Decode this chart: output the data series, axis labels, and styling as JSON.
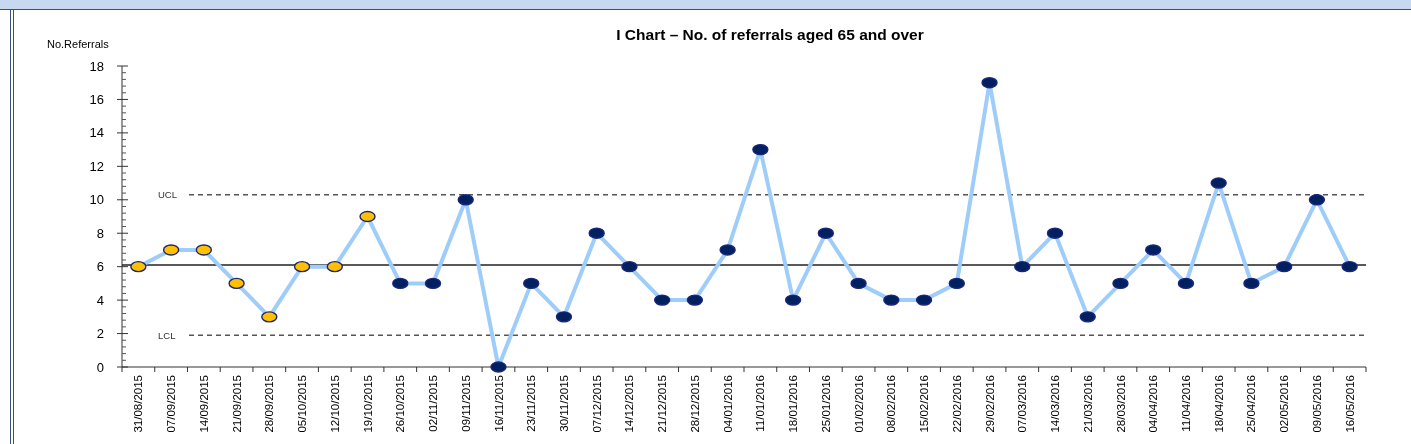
{
  "chart_data": {
    "type": "line",
    "title": "I Chart – No. of referrals aged 65 and over",
    "ylabel": "No.Referrals",
    "categories": [
      "31/08/2015",
      "07/09/2015",
      "14/09/2015",
      "21/09/2015",
      "28/09/2015",
      "05/10/2015",
      "12/10/2015",
      "19/10/2015",
      "26/10/2015",
      "02/11/2015",
      "09/11/2015",
      "16/11/2015",
      "23/11/2015",
      "30/11/2015",
      "07/12/2015",
      "14/12/2015",
      "21/12/2015",
      "28/12/2015",
      "04/01/2016",
      "11/01/2016",
      "18/01/2016",
      "25/01/2016",
      "01/02/2016",
      "08/02/2016",
      "15/02/2016",
      "22/02/2016",
      "29/02/2016",
      "07/03/2016",
      "14/03/2016",
      "21/03/2016",
      "28/03/2016",
      "04/04/2016",
      "11/04/2016",
      "18/04/2016",
      "25/04/2016",
      "02/05/2016",
      "09/05/2016",
      "16/05/2016"
    ],
    "series": [
      {
        "color": "#9fcdfa",
        "values": [
          6,
          7,
          7,
          5,
          3,
          6,
          6,
          9,
          5,
          5,
          10,
          0,
          5,
          3,
          8,
          6,
          4,
          4,
          7,
          13,
          4,
          8,
          5,
          4,
          4,
          5,
          17,
          6,
          8,
          3,
          5,
          7,
          5,
          11,
          5,
          6,
          10,
          6
        ],
        "colors": [
          "#ffc000",
          "#ffc000",
          "#ffc000",
          "#ffc000",
          "#ffc000",
          "#ffc000",
          "#ffc000",
          "#ffc000",
          "#002060",
          "#002060",
          "#002060",
          "#002060",
          "#002060",
          "#002060",
          "#002060",
          "#002060",
          "#002060",
          "#002060",
          "#002060",
          "#002060",
          "#002060",
          "#002060",
          "#002060",
          "#002060",
          "#002060",
          "#002060",
          "#002060",
          "#002060",
          "#002060",
          "#002060",
          "#002060",
          "#002060",
          "#002060",
          "#002060",
          "#002060",
          "#002060",
          "#002060",
          "#002060"
        ]
      }
    ],
    "ylim": [
      0,
      18
    ],
    "yticks": [
      0,
      {
        "value": 0.4,
        "label": null
      },
      {
        "value": 0.8,
        "label": null
      },
      {
        "value": 1.2,
        "label": null
      },
      {
        "value": 1.6,
        "label": null
      },
      2,
      {
        "value": 2.4,
        "label": null
      },
      {
        "value": 2.8,
        "label": null
      },
      {
        "value": 3.2,
        "label": null
      },
      {
        "value": 3.6,
        "label": null
      },
      4,
      {
        "value": 4.4,
        "label": null
      },
      {
        "value": 4.8,
        "label": null
      },
      {
        "value": 5.2,
        "label": null
      },
      {
        "value": 5.6,
        "label": null
      },
      6,
      {
        "value": 6.4,
        "label": null
      },
      {
        "value": 6.8,
        "label": null
      },
      {
        "value": 7.2,
        "label": null
      },
      {
        "value": 7.6,
        "label": null
      },
      8,
      {
        "value": 8.4,
        "label": null
      },
      {
        "value": 8.8,
        "label": null
      },
      {
        "value": 9.2,
        "label": null
      },
      {
        "value": 9.6,
        "label": null
      },
      10,
      {
        "value": 10.4,
        "label": null
      },
      {
        "value": 10.8,
        "label": null
      },
      {
        "value": 11.2,
        "label": null
      },
      {
        "value": 11.6,
        "label": null
      },
      12,
      {
        "value": 12.4,
        "label": null
      },
      {
        "value": 12.8,
        "label": null
      },
      {
        "value": 13.2,
        "label": null
      },
      {
        "value": 13.6,
        "label": null
      },
      14,
      {
        "value": 14.4,
        "label": null
      },
      {
        "value": 14.8,
        "label": null
      },
      {
        "value": 15.2,
        "label": null
      },
      {
        "value": 15.6,
        "label": null
      },
      16,
      {
        "value": 16.4,
        "label": null
      },
      {
        "value": 16.8,
        "label": null
      },
      {
        "value": 17.2,
        "label": null
      },
      {
        "value": 17.6,
        "label": null
      },
      18
    ],
    "ref_lines": [
      {
        "axis": "y",
        "value": 10.3,
        "label": "UCL",
        "line_style": "dashed",
        "color": "#555555"
      },
      {
        "axis": "y",
        "value": 6.1,
        "line_style": "solid",
        "color": "#222222"
      },
      {
        "axis": "y",
        "value": 1.9,
        "label": "LCL",
        "line_style": "dashed",
        "color": "#555555"
      }
    ],
    "grid": false,
    "marker": "circle",
    "line_style": "solid"
  }
}
